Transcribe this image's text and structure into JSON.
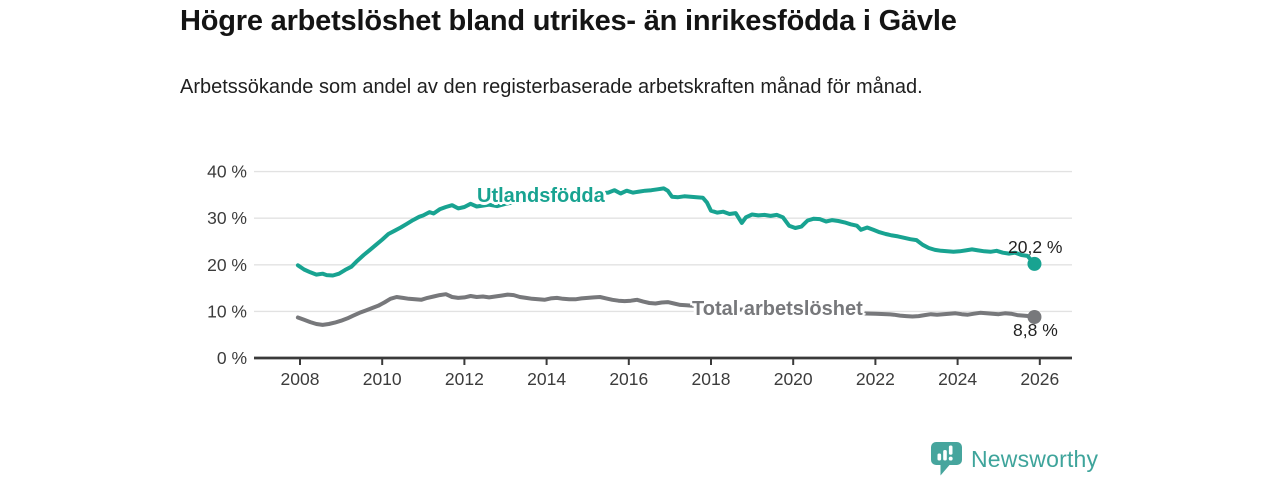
{
  "colors": {
    "teal": "#18a391",
    "gray": "#77787b",
    "grid": "#e2e2e2",
    "axis": "#3a3a3a",
    "tick_text": "#3c3c3c",
    "value_text": "#222222",
    "logo_teal": "#46a59d"
  },
  "logo": {
    "text": "Newsworthy"
  },
  "chart_data": {
    "type": "line",
    "title": "Högre arbetslöshet bland utrikes- än inrikesfödda i Gävle",
    "subtitle": "Arbetssökande som andel av den registerbaserade arbetskraften månad för månad.",
    "xlabel": "",
    "ylabel": "",
    "ylim": [
      0,
      40
    ],
    "xlim": [
      2006.9,
      2026.8
    ],
    "grid": "horizontal",
    "legend": "inline-labels",
    "y_ticks": [
      {
        "v": 0,
        "label": "0 %"
      },
      {
        "v": 10,
        "label": "10 %"
      },
      {
        "v": 20,
        "label": "20 %"
      },
      {
        "v": 30,
        "label": "30 %"
      },
      {
        "v": 40,
        "label": "40 %"
      }
    ],
    "x_ticks": [
      {
        "v": 2008,
        "label": "2008"
      },
      {
        "v": 2010,
        "label": "2010"
      },
      {
        "v": 2012,
        "label": "2012"
      },
      {
        "v": 2014,
        "label": "2014"
      },
      {
        "v": 2016,
        "label": "2016"
      },
      {
        "v": 2018,
        "label": "2018"
      },
      {
        "v": 2020,
        "label": "2020"
      },
      {
        "v": 2022,
        "label": "2022"
      },
      {
        "v": 2024,
        "label": "2024"
      },
      {
        "v": 2026,
        "label": "2026"
      }
    ],
    "series": [
      {
        "name": "Utlandsfödda",
        "color": "#18a391",
        "end_label": "20,2 %",
        "end_value": 20.2,
        "points": [
          [
            2007.95,
            19.9
          ],
          [
            2008.1,
            19.0
          ],
          [
            2008.25,
            18.4
          ],
          [
            2008.4,
            17.9
          ],
          [
            2008.55,
            18.1
          ],
          [
            2008.65,
            17.8
          ],
          [
            2008.8,
            17.7
          ],
          [
            2008.95,
            18.1
          ],
          [
            2009.1,
            18.9
          ],
          [
            2009.25,
            19.6
          ],
          [
            2009.4,
            20.9
          ],
          [
            2009.55,
            22.1
          ],
          [
            2009.7,
            23.2
          ],
          [
            2009.85,
            24.3
          ],
          [
            2010.0,
            25.4
          ],
          [
            2010.15,
            26.6
          ],
          [
            2010.3,
            27.3
          ],
          [
            2010.45,
            28.0
          ],
          [
            2010.6,
            28.8
          ],
          [
            2010.75,
            29.6
          ],
          [
            2010.9,
            30.3
          ],
          [
            2011.0,
            30.6
          ],
          [
            2011.15,
            31.3
          ],
          [
            2011.25,
            31.0
          ],
          [
            2011.4,
            31.9
          ],
          [
            2011.55,
            32.4
          ],
          [
            2011.7,
            32.8
          ],
          [
            2011.85,
            32.1
          ],
          [
            2012.0,
            32.4
          ],
          [
            2012.15,
            33.1
          ],
          [
            2012.3,
            32.5
          ],
          [
            2012.45,
            32.7
          ],
          [
            2012.6,
            32.9
          ],
          [
            2012.8,
            32.6
          ],
          [
            2013.0,
            33.1
          ],
          [
            2013.25,
            33.5
          ],
          [
            2013.5,
            33.8
          ],
          [
            2013.75,
            34.1
          ],
          [
            2014.0,
            34.3
          ],
          [
            2014.25,
            34.5
          ],
          [
            2014.5,
            34.8
          ],
          [
            2014.75,
            35.0
          ],
          [
            2015.0,
            35.2
          ],
          [
            2015.25,
            35.3
          ],
          [
            2015.5,
            35.5
          ],
          [
            2015.65,
            36.0
          ],
          [
            2015.8,
            35.3
          ],
          [
            2015.95,
            35.9
          ],
          [
            2016.1,
            35.5
          ],
          [
            2016.25,
            35.7
          ],
          [
            2016.4,
            35.9
          ],
          [
            2016.55,
            36.0
          ],
          [
            2016.7,
            36.2
          ],
          [
            2016.85,
            36.4
          ],
          [
            2016.95,
            35.9
          ],
          [
            2017.05,
            34.6
          ],
          [
            2017.2,
            34.5
          ],
          [
            2017.35,
            34.7
          ],
          [
            2017.5,
            34.6
          ],
          [
            2017.65,
            34.5
          ],
          [
            2017.8,
            34.4
          ],
          [
            2017.9,
            33.4
          ],
          [
            2018.0,
            31.6
          ],
          [
            2018.15,
            31.2
          ],
          [
            2018.3,
            31.4
          ],
          [
            2018.45,
            30.9
          ],
          [
            2018.6,
            31.1
          ],
          [
            2018.75,
            29.0
          ],
          [
            2018.85,
            30.2
          ],
          [
            2019.0,
            30.8
          ],
          [
            2019.15,
            30.6
          ],
          [
            2019.3,
            30.7
          ],
          [
            2019.45,
            30.5
          ],
          [
            2019.6,
            30.7
          ],
          [
            2019.75,
            30.2
          ],
          [
            2019.9,
            28.4
          ],
          [
            2020.05,
            27.9
          ],
          [
            2020.2,
            28.2
          ],
          [
            2020.35,
            29.5
          ],
          [
            2020.5,
            29.9
          ],
          [
            2020.65,
            29.8
          ],
          [
            2020.8,
            29.3
          ],
          [
            2020.95,
            29.6
          ],
          [
            2021.1,
            29.4
          ],
          [
            2021.25,
            29.1
          ],
          [
            2021.4,
            28.7
          ],
          [
            2021.55,
            28.4
          ],
          [
            2021.65,
            27.5
          ],
          [
            2021.8,
            28.0
          ],
          [
            2021.95,
            27.5
          ],
          [
            2022.1,
            27.0
          ],
          [
            2022.25,
            26.6
          ],
          [
            2022.4,
            26.3
          ],
          [
            2022.55,
            26.1
          ],
          [
            2022.7,
            25.8
          ],
          [
            2022.85,
            25.5
          ],
          [
            2023.0,
            25.3
          ],
          [
            2023.15,
            24.3
          ],
          [
            2023.3,
            23.6
          ],
          [
            2023.45,
            23.2
          ],
          [
            2023.6,
            23.0
          ],
          [
            2023.75,
            22.9
          ],
          [
            2023.9,
            22.8
          ],
          [
            2024.05,
            22.9
          ],
          [
            2024.2,
            23.1
          ],
          [
            2024.35,
            23.3
          ],
          [
            2024.5,
            23.1
          ],
          [
            2024.65,
            22.9
          ],
          [
            2024.8,
            22.8
          ],
          [
            2024.95,
            23.0
          ],
          [
            2025.1,
            22.6
          ],
          [
            2025.25,
            22.4
          ],
          [
            2025.4,
            22.6
          ],
          [
            2025.55,
            22.1
          ],
          [
            2025.7,
            21.9
          ],
          [
            2025.87,
            20.2
          ]
        ]
      },
      {
        "name": "Total arbetslöshet",
        "color": "#77787b",
        "end_label": "8,8 %",
        "end_value": 8.8,
        "points": [
          [
            2007.95,
            8.7
          ],
          [
            2008.1,
            8.2
          ],
          [
            2008.25,
            7.7
          ],
          [
            2008.4,
            7.3
          ],
          [
            2008.55,
            7.1
          ],
          [
            2008.7,
            7.3
          ],
          [
            2008.85,
            7.6
          ],
          [
            2009.0,
            8.0
          ],
          [
            2009.15,
            8.5
          ],
          [
            2009.3,
            9.1
          ],
          [
            2009.45,
            9.7
          ],
          [
            2009.6,
            10.2
          ],
          [
            2009.75,
            10.7
          ],
          [
            2009.9,
            11.2
          ],
          [
            2010.05,
            11.9
          ],
          [
            2010.2,
            12.7
          ],
          [
            2010.35,
            13.1
          ],
          [
            2010.5,
            12.9
          ],
          [
            2010.65,
            12.7
          ],
          [
            2010.8,
            12.6
          ],
          [
            2010.95,
            12.5
          ],
          [
            2011.1,
            12.9
          ],
          [
            2011.25,
            13.2
          ],
          [
            2011.4,
            13.5
          ],
          [
            2011.55,
            13.7
          ],
          [
            2011.7,
            13.1
          ],
          [
            2011.85,
            12.9
          ],
          [
            2012.0,
            13.0
          ],
          [
            2012.15,
            13.3
          ],
          [
            2012.3,
            13.1
          ],
          [
            2012.45,
            13.2
          ],
          [
            2012.6,
            13.0
          ],
          [
            2012.75,
            13.2
          ],
          [
            2012.9,
            13.4
          ],
          [
            2013.05,
            13.6
          ],
          [
            2013.2,
            13.5
          ],
          [
            2013.35,
            13.1
          ],
          [
            2013.5,
            12.9
          ],
          [
            2013.65,
            12.7
          ],
          [
            2013.8,
            12.6
          ],
          [
            2013.95,
            12.5
          ],
          [
            2014.1,
            12.8
          ],
          [
            2014.25,
            12.9
          ],
          [
            2014.4,
            12.7
          ],
          [
            2014.55,
            12.6
          ],
          [
            2014.7,
            12.6
          ],
          [
            2014.85,
            12.8
          ],
          [
            2015.0,
            12.9
          ],
          [
            2015.15,
            13.0
          ],
          [
            2015.3,
            13.1
          ],
          [
            2015.45,
            12.8
          ],
          [
            2015.6,
            12.5
          ],
          [
            2015.75,
            12.3
          ],
          [
            2015.9,
            12.2
          ],
          [
            2016.05,
            12.3
          ],
          [
            2016.2,
            12.5
          ],
          [
            2016.35,
            12.1
          ],
          [
            2016.5,
            11.8
          ],
          [
            2016.65,
            11.7
          ],
          [
            2016.8,
            11.9
          ],
          [
            2016.95,
            12.0
          ],
          [
            2017.1,
            11.7
          ],
          [
            2017.25,
            11.4
          ],
          [
            2017.4,
            11.3
          ],
          [
            2017.55,
            11.2
          ],
          [
            2017.7,
            11.1
          ],
          [
            2017.85,
            11.0
          ],
          [
            2018.1,
            10.8
          ],
          [
            2018.5,
            10.5
          ],
          [
            2019.0,
            10.3
          ],
          [
            2019.5,
            10.1
          ],
          [
            2020.0,
            10.2
          ],
          [
            2020.5,
            10.0
          ],
          [
            2021.0,
            9.8
          ],
          [
            2021.5,
            9.6
          ],
          [
            2022.0,
            9.5
          ],
          [
            2022.3,
            9.4
          ],
          [
            2022.45,
            9.3
          ],
          [
            2022.6,
            9.1
          ],
          [
            2022.75,
            9.0
          ],
          [
            2022.9,
            8.9
          ],
          [
            2023.05,
            9.0
          ],
          [
            2023.2,
            9.2
          ],
          [
            2023.35,
            9.4
          ],
          [
            2023.5,
            9.3
          ],
          [
            2023.65,
            9.4
          ],
          [
            2023.8,
            9.5
          ],
          [
            2023.95,
            9.6
          ],
          [
            2024.1,
            9.4
          ],
          [
            2024.25,
            9.3
          ],
          [
            2024.4,
            9.5
          ],
          [
            2024.55,
            9.7
          ],
          [
            2024.7,
            9.6
          ],
          [
            2024.85,
            9.5
          ],
          [
            2025.0,
            9.4
          ],
          [
            2025.15,
            9.6
          ],
          [
            2025.3,
            9.5
          ],
          [
            2025.45,
            9.2
          ],
          [
            2025.6,
            9.1
          ],
          [
            2025.75,
            9.0
          ],
          [
            2025.87,
            8.8
          ]
        ]
      }
    ]
  }
}
